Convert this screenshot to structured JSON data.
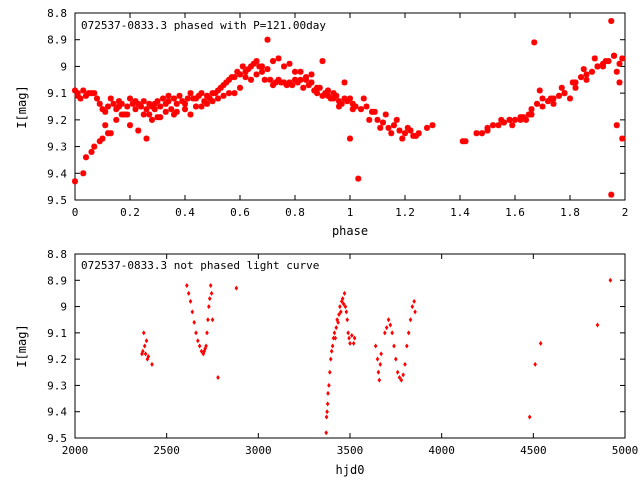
{
  "colors": {
    "points": "#ff0000",
    "axes": "#000000",
    "background": "#ffffff"
  },
  "chart_data": [
    {
      "type": "scatter",
      "title": "072537-0833.3 phased with P=121.00day",
      "xlabel": "phase",
      "ylabel": "I[mag]",
      "xlim": [
        0,
        2
      ],
      "ylim": [
        9.5,
        8.8
      ],
      "y_inverted": true,
      "xticks": [
        0,
        0.2,
        0.4,
        0.6,
        0.8,
        1,
        1.2,
        1.4,
        1.6,
        1.8,
        2
      ],
      "xtick_labels": [
        "0",
        "0.2",
        "0.4",
        "0.6",
        "0.8",
        "1",
        "1.2",
        "1.4",
        "1.6",
        "1.8",
        "2"
      ],
      "yticks": [
        8.8,
        8.9,
        9.0,
        9.1,
        9.2,
        9.3,
        9.4,
        9.5
      ],
      "ytick_labels": [
        "8.8",
        "8.9",
        "9",
        "9.1",
        "9.2",
        "9.3",
        "9.4",
        "9.5"
      ],
      "grid": false,
      "marker": "star",
      "series": [
        {
          "x": [
            0.0,
            0.01,
            0.02,
            0.03,
            0.04,
            0.05,
            0.06,
            0.07,
            0.08,
            0.09,
            0.1,
            0.11,
            0.12,
            0.13,
            0.14,
            0.15,
            0.16,
            0.17,
            0.18,
            0.19,
            0.2,
            0.21,
            0.22,
            0.23,
            0.24,
            0.25,
            0.26,
            0.27,
            0.28,
            0.29,
            0.3,
            0.31,
            0.32,
            0.33,
            0.34,
            0.35,
            0.36,
            0.37,
            0.38,
            0.39,
            0.4,
            0.41,
            0.42,
            0.43,
            0.44,
            0.45,
            0.46,
            0.47,
            0.48,
            0.49,
            0.5,
            0.51,
            0.52,
            0.53,
            0.54,
            0.55,
            0.56,
            0.57,
            0.58,
            0.59,
            0.6,
            0.61,
            0.62,
            0.63,
            0.64,
            0.65,
            0.66,
            0.67,
            0.68,
            0.69,
            0.7,
            0.71,
            0.72,
            0.73,
            0.74,
            0.75,
            0.76,
            0.77,
            0.78,
            0.79,
            0.8,
            0.81,
            0.82,
            0.83,
            0.84,
            0.85,
            0.86,
            0.87,
            0.88,
            0.89,
            0.9,
            0.91,
            0.92,
            0.93,
            0.94,
            0.95,
            0.96,
            0.97,
            0.98,
            0.99,
            1.0,
            1.01,
            1.02,
            1.04,
            1.06,
            1.08,
            1.1,
            1.12,
            1.14,
            1.16,
            1.18,
            1.2,
            1.22,
            1.25,
            1.3,
            1.42,
            1.48,
            1.5,
            1.52,
            1.56,
            1.58,
            1.6,
            1.62,
            1.63,
            1.65,
            1.66,
            1.68,
            1.7,
            1.72,
            1.74,
            1.76,
            1.78,
            1.8,
            1.82,
            1.84,
            1.86,
            1.88,
            1.9,
            1.92,
            1.94,
            1.95,
            1.96,
            1.97,
            1.98,
            1.99,
            0.0,
            0.03,
            0.06,
            0.1,
            0.12,
            0.15,
            0.17,
            0.2,
            0.23,
            0.26,
            0.28,
            0.3,
            0.33,
            0.36,
            0.4,
            0.44,
            0.48,
            0.52,
            0.56,
            0.6,
            0.64,
            0.68,
            0.72,
            0.76,
            0.8,
            0.84,
            0.88,
            0.92,
            0.96,
            1.0,
            1.03,
            1.07,
            1.11,
            1.15,
            1.19,
            1.23,
            1.5,
            1.54,
            1.58,
            1.62,
            1.66,
            1.7,
            1.74,
            1.78,
            1.82,
            1.86,
            1.9,
            1.93,
            1.96,
            1.98,
            0.01,
            0.04,
            0.07,
            0.09,
            0.11,
            0.13,
            0.16,
            0.19,
            0.22,
            0.25,
            0.27,
            0.29,
            0.31,
            0.34,
            0.37,
            0.42,
            0.46,
            0.5,
            0.54,
            0.58,
            0.62,
            0.66,
            0.7,
            0.74,
            0.78,
            0.82,
            0.86,
            0.9,
            0.94,
            0.98,
            1.01,
            1.05,
            1.09,
            1.13,
            1.17,
            1.21,
            1.24,
            1.28,
            1.41,
            1.46,
            1.55,
            1.59,
            1.64,
            1.67,
            1.69,
            1.73,
            1.77,
            1.81,
            1.85,
            1.89,
            1.92,
            1.97,
            1.99,
            1.95
          ],
          "y": [
            9.09,
            9.1,
            9.12,
            9.09,
            9.11,
            9.1,
            9.1,
            9.1,
            9.12,
            9.14,
            9.16,
            9.17,
            9.15,
            9.12,
            9.14,
            9.16,
            9.13,
            9.14,
            9.18,
            9.15,
            9.12,
            9.14,
            9.16,
            9.14,
            9.15,
            9.13,
            9.16,
            9.14,
            9.15,
            9.14,
            9.13,
            9.15,
            9.12,
            9.14,
            9.13,
            9.16,
            9.12,
            9.14,
            9.11,
            9.13,
            9.14,
            9.12,
            9.1,
            9.12,
            9.12,
            9.11,
            9.1,
            9.13,
            9.11,
            9.12,
            9.1,
            9.1,
            9.09,
            9.08,
            9.07,
            9.06,
            9.05,
            9.04,
            9.04,
            9.02,
            9.03,
            9.0,
            9.02,
            9.01,
            9.0,
            8.99,
            8.98,
            9.0,
            9.02,
            9.05,
            9.01,
            9.05,
            9.07,
            9.06,
            9.05,
            9.06,
            9.06,
            9.07,
            9.06,
            9.07,
            9.05,
            9.06,
            9.05,
            9.08,
            9.04,
            9.07,
            9.06,
            9.09,
            9.1,
            9.08,
            9.11,
            9.1,
            9.09,
            9.12,
            9.1,
            9.11,
            9.13,
            9.14,
            9.12,
            9.13,
            9.12,
            9.14,
            9.15,
            9.16,
            9.15,
            9.17,
            9.2,
            9.21,
            9.23,
            9.22,
            9.24,
            9.25,
            9.24,
            9.25,
            9.22,
            9.28,
            9.25,
            9.23,
            9.22,
            9.21,
            9.2,
            9.2,
            9.2,
            9.19,
            9.18,
            9.16,
            9.14,
            9.12,
            9.13,
            9.14,
            9.11,
            9.1,
            9.12,
            9.06,
            9.04,
            9.03,
            9.02,
            9.0,
            8.99,
            8.98,
            8.83,
            8.96,
            9.02,
            8.99,
            8.97,
            9.43,
            9.4,
            9.32,
            9.27,
            9.25,
            9.2,
            9.18,
            9.22,
            9.24,
            9.27,
            9.2,
            9.19,
            9.17,
            9.18,
            9.16,
            9.15,
            9.14,
            9.12,
            9.1,
            9.08,
            9.05,
            9.0,
            8.98,
            9.0,
            9.02,
            9.05,
            9.08,
            9.11,
            9.15,
            9.27,
            9.42,
            9.2,
            9.23,
            9.25,
            9.27,
            9.26,
            9.24,
            9.22,
            9.2,
            9.19,
            9.18,
            9.15,
            9.12,
            9.1,
            9.08,
            9.05,
            9.0,
            8.98,
            8.96,
            9.06,
            9.11,
            9.34,
            9.3,
            9.28,
            9.22,
            9.25,
            9.15,
            9.18,
            9.13,
            9.18,
            9.18,
            9.16,
            9.19,
            9.11,
            9.17,
            9.18,
            9.15,
            9.13,
            9.11,
            9.1,
            9.04,
            9.03,
            8.9,
            8.97,
            8.99,
            9.02,
            9.03,
            8.98,
            9.12,
            9.06,
            9.16,
            9.12,
            9.17,
            9.18,
            9.2,
            9.23,
            9.26,
            9.23,
            9.28,
            9.25,
            9.2,
            9.22,
            9.2,
            8.91,
            9.09,
            9.12,
            9.08,
            9.06,
            9.01,
            8.97,
            9.0,
            9.22,
            9.27,
            9.48
          ]
        }
      ]
    },
    {
      "type": "scatter",
      "title": "072537-0833.3 not phased light curve",
      "xlabel": "hjd0",
      "ylabel": "I[mag]",
      "xlim": [
        2000,
        5000
      ],
      "ylim": [
        9.5,
        8.8
      ],
      "y_inverted": true,
      "xticks": [
        2000,
        2500,
        3000,
        3500,
        4000,
        4500,
        5000
      ],
      "xtick_labels": [
        "2000",
        "2500",
        "3000",
        "3500",
        "4000",
        "4500",
        "5000"
      ],
      "yticks": [
        8.8,
        8.9,
        9.0,
        9.1,
        9.2,
        9.3,
        9.4,
        9.5
      ],
      "ytick_labels": [
        "8.8",
        "8.9",
        "9",
        "9.1",
        "9.2",
        "9.3",
        "9.4",
        "9.5"
      ],
      "grid": false,
      "marker": "diamond",
      "series": [
        {
          "x": [
            2365,
            2370,
            2375,
            2380,
            2385,
            2390,
            2395,
            2400,
            2420,
            2610,
            2620,
            2630,
            2640,
            2650,
            2660,
            2670,
            2680,
            2690,
            2700,
            2705,
            2710,
            2715,
            2720,
            2725,
            2730,
            2735,
            2740,
            2745,
            2750,
            2780,
            2880,
            3370,
            3372,
            3375,
            3378,
            3380,
            3385,
            3390,
            3395,
            3400,
            3405,
            3410,
            3415,
            3420,
            3425,
            3430,
            3435,
            3440,
            3445,
            3450,
            3455,
            3460,
            3465,
            3470,
            3475,
            3480,
            3485,
            3490,
            3495,
            3500,
            3510,
            3520,
            3525,
            3640,
            3650,
            3655,
            3660,
            3665,
            3670,
            3690,
            3700,
            3710,
            3720,
            3730,
            3740,
            3750,
            3760,
            3770,
            3780,
            3790,
            3800,
            3810,
            3820,
            3830,
            3840,
            3850,
            3855,
            4480,
            4510,
            4540,
            4850,
            4920
          ],
          "y": [
            9.18,
            9.17,
            9.1,
            9.15,
            9.18,
            9.13,
            9.2,
            9.19,
            9.22,
            8.92,
            8.95,
            8.98,
            9.02,
            9.06,
            9.1,
            9.13,
            9.15,
            9.17,
            9.18,
            9.17,
            9.16,
            9.15,
            9.1,
            9.05,
            9.0,
            8.97,
            8.92,
            8.95,
            9.05,
            9.27,
            8.93,
            9.48,
            9.42,
            9.4,
            9.37,
            9.33,
            9.3,
            9.25,
            9.2,
            9.17,
            9.15,
            9.12,
            9.1,
            9.12,
            9.08,
            9.05,
            9.06,
            9.03,
            9.0,
            9.02,
            8.98,
            8.97,
            8.99,
            8.95,
            9.0,
            9.02,
            9.05,
            9.1,
            9.12,
            9.14,
            9.11,
            9.14,
            9.12,
            9.15,
            9.2,
            9.25,
            9.28,
            9.22,
            9.18,
            9.1,
            9.08,
            9.05,
            9.07,
            9.1,
            9.15,
            9.2,
            9.25,
            9.27,
            9.28,
            9.26,
            9.22,
            9.15,
            9.1,
            9.05,
            9.0,
            8.98,
            9.02,
            9.42,
            9.22,
            9.14,
            9.07,
            8.9
          ]
        }
      ]
    }
  ]
}
